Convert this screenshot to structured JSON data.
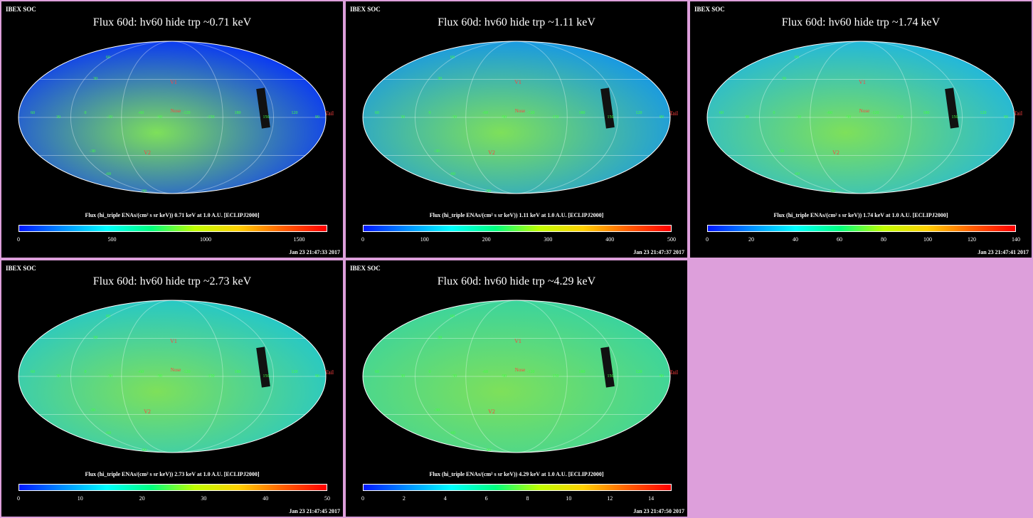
{
  "colors": {
    "background": "#dd9fdb",
    "panel": "#000000"
  },
  "panels": [
    {
      "soc": "IBEX SOC",
      "title": "Flux   60d: hv60 hide trp ~0.71 keV",
      "flux_label": "Flux (hi_triple ENAs/(cm² s sr keV))  0.71 keV at 1.0 A.U. [ECLIPJ2000]",
      "ticks": [
        "0",
        "500",
        "1000",
        "1500"
      ],
      "tick_values": [
        0,
        500,
        1000,
        1500
      ],
      "scale_max": 1650,
      "timestamp": "Jan 23 21:47:33 2017",
      "base_color": "#0c3cf0",
      "map_labels": {
        "v1": "V1",
        "v2": "V2",
        "nose": "Nose",
        "tail": "Tail",
        "lon": [
          "60",
          "30",
          "0",
          "-30",
          "-60",
          "-90",
          "-120",
          "-150",
          "180",
          "150",
          "120",
          "90"
        ],
        "lat": [
          "60",
          "30",
          "-30",
          "-60",
          "-90"
        ]
      }
    },
    {
      "soc": "IBEX SOC",
      "title": "Flux   60d: hv60 hide trp ~1.11 keV",
      "flux_label": "Flux (hi_triple ENAs/(cm² s sr keV))  1.11 keV at 1.0 A.U. [ECLIPJ2000]",
      "ticks": [
        "0",
        "100",
        "200",
        "300",
        "400",
        "500"
      ],
      "tick_values": [
        0,
        100,
        200,
        300,
        400,
        500
      ],
      "scale_max": 500,
      "timestamp": "Jan 23 21:47:37 2017",
      "base_color": "#1a9ae0",
      "map_labels": {
        "v1": "V1",
        "v2": "V2",
        "nose": "Nose",
        "tail": "Tail",
        "lon": [
          "60",
          "30",
          "0",
          "-30",
          "-60",
          "-90",
          "-120",
          "-150",
          "180",
          "150",
          "120",
          "90"
        ],
        "lat": [
          "60",
          "30",
          "-30",
          "-60",
          "-90"
        ]
      }
    },
    {
      "soc": "IBEX SOC",
      "title": "Flux   60d: hv60 hide trp ~1.74 keV",
      "flux_label": "Flux (hi_triple ENAs/(cm² s sr keV))  1.74 keV at 1.0 A.U. [ECLIPJ2000]",
      "ticks": [
        "0",
        "20",
        "40",
        "60",
        "80",
        "100",
        "120",
        "140"
      ],
      "tick_values": [
        0,
        20,
        40,
        60,
        80,
        100,
        120,
        140
      ],
      "scale_max": 140,
      "timestamp": "Jan 23 21:47:41 2017",
      "base_color": "#24b8d8",
      "map_labels": {
        "v1": "V1",
        "v2": "V2",
        "nose": "Nose",
        "tail": "Tail",
        "lon": [
          "60",
          "30",
          "0",
          "-30",
          "-60",
          "-90",
          "-120",
          "-150",
          "180",
          "150",
          "120",
          "90"
        ],
        "lat": [
          "60",
          "30",
          "-30",
          "-60",
          "-90"
        ]
      }
    },
    {
      "soc": "IBEX SOC",
      "title": "Flux   60d: hv60 hide trp ~2.73 keV",
      "flux_label": "Flux (hi_triple ENAs/(cm² s sr keV))  2.73 keV at 1.0 A.U. [ECLIPJ2000]",
      "ticks": [
        "0",
        "10",
        "20",
        "30",
        "40",
        "50"
      ],
      "tick_values": [
        0,
        10,
        20,
        30,
        40,
        50
      ],
      "scale_max": 50,
      "timestamp": "Jan 23 21:47:45 2017",
      "base_color": "#28c8c4",
      "map_labels": {
        "v1": "V1",
        "v2": "V2",
        "nose": "Nose",
        "tail": "Tail",
        "lon": [
          "60",
          "30",
          "0",
          "-30",
          "-60",
          "-90",
          "-120",
          "-150",
          "180",
          "150",
          "120",
          "90"
        ],
        "lat": [
          "60",
          "30",
          "-30",
          "-60",
          "-90"
        ]
      }
    },
    {
      "soc": "IBEX SOC",
      "title": "Flux   60d: hv60 hide trp ~4.29 keV",
      "flux_label": "Flux (hi_triple ENAs/(cm² s sr keV))  4.29 keV at 1.0 A.U. [ECLIPJ2000]",
      "ticks": [
        "0",
        "2",
        "4",
        "6",
        "8",
        "10",
        "12",
        "14"
      ],
      "tick_values": [
        0,
        2,
        4,
        6,
        8,
        10,
        12,
        14
      ],
      "scale_max": 15,
      "timestamp": "Jan 23 21:47:50 2017",
      "base_color": "#3cd49c",
      "map_labels": {
        "v1": "V1",
        "v2": "V2",
        "nose": "Nose",
        "tail": "Tail",
        "lon": [
          "60",
          "30",
          "0",
          "-30",
          "-60",
          "-90",
          "-120",
          "-150",
          "180",
          "150",
          "120",
          "90"
        ],
        "lat": [
          "60",
          "30",
          "-30",
          "-60",
          "-90"
        ]
      }
    }
  ]
}
